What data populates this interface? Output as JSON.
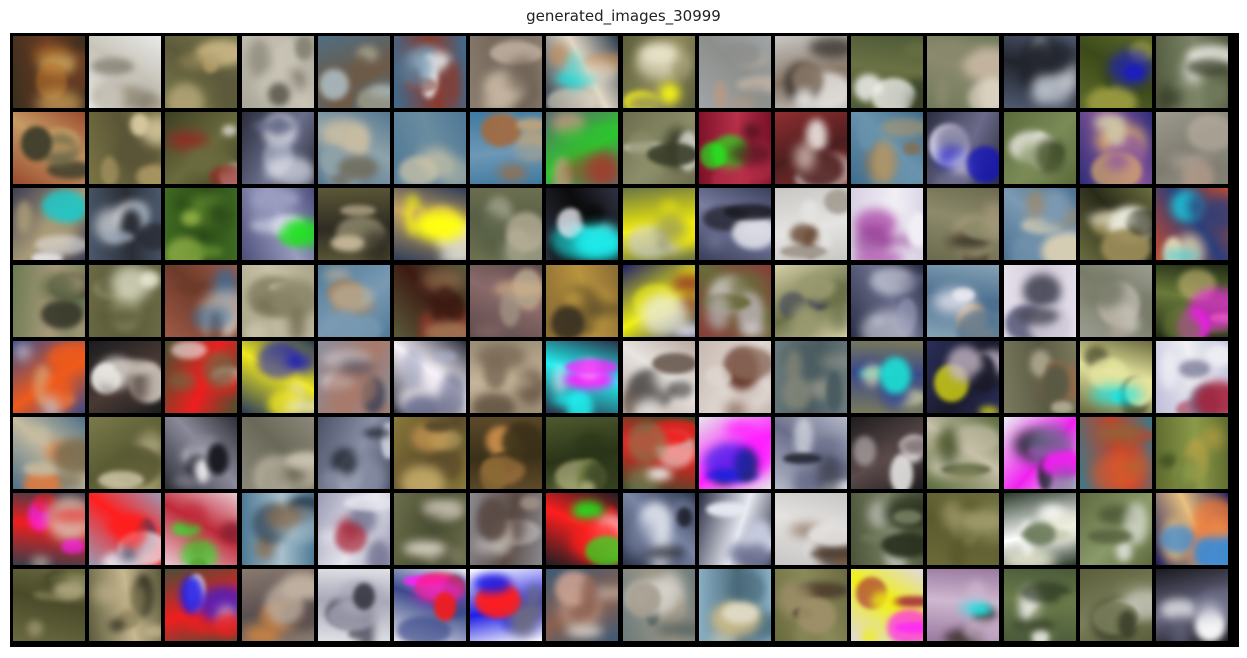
{
  "figure": {
    "title": "generated_images_30999"
  },
  "grid_info": {
    "rows": 8,
    "cols": 16
  },
  "palettes": [
    [
      "#3a2f1e",
      "#b8742c",
      "#6b3b22",
      "#c9a25a"
    ],
    [
      "#e8ebe9",
      "#9b8e76",
      "#c7c3b8",
      "#6f6a5a"
    ],
    [
      "#7b7a4a",
      "#a8945f",
      "#5c5a3b",
      "#c8b585"
    ],
    [
      "#a9a698",
      "#7f7b6c",
      "#c9c4b6",
      "#5f5b4f"
    ],
    [
      "#4e6e83",
      "#9e9a86",
      "#6e5a46",
      "#a7b4b8"
    ],
    [
      "#3d6c8f",
      "#e6e8e9",
      "#8b3a2c",
      "#5e86a3"
    ],
    [
      "#8a7d6e",
      "#b9a99a",
      "#6e6255",
      "#c9b8a4"
    ],
    [
      "#2b3a4a",
      "#c48a54",
      "#e3d9c6",
      "#1fd6d6"
    ],
    [
      "#5b5e3a",
      "#e8e2c8",
      "#8f8a5c",
      "#f2f01a"
    ],
    [
      "#a0a5a8",
      "#c3b4a6",
      "#8d8f8c",
      "#b89a84"
    ],
    [
      "#c8c6c2",
      "#1a1614",
      "#8a7a6a",
      "#e8e6e4"
    ],
    [
      "#4d5a36",
      "#f1f1ef",
      "#6a7144",
      "#3a4428"
    ],
    [
      "#6f7a5a",
      "#c8b7a3",
      "#8c8a6e",
      "#e0d7c8"
    ],
    [
      "#4f5a70",
      "#e9ecef",
      "#22252d",
      "#c2c8d2"
    ],
    [
      "#5e6b2b",
      "#9b9c40",
      "#3c4a1a",
      "#1c1cc6"
    ],
    [
      "#525a3f",
      "#f0efe9",
      "#7d8568",
      "#343b26"
    ],
    [
      "#9a4a2e",
      "#6b6a4a",
      "#c79b64",
      "#3d3d2a"
    ],
    [
      "#7a7444",
      "#b8a26a",
      "#5a5536",
      "#d8c9a0"
    ],
    [
      "#3e3f22",
      "#ffffff",
      "#6a6b3e",
      "#a02020"
    ],
    [
      "#2a2c3a",
      "#e6e6ef",
      "#6a6f8c",
      "#b0b8c8"
    ],
    [
      "#577892",
      "#c7bca3",
      "#8ea2a9",
      "#6e6450"
    ],
    [
      "#4e7896",
      "#a9b2a2",
      "#6a8c9f",
      "#c9c2a8"
    ],
    [
      "#3f7aa0",
      "#a46a3c",
      "#6d98b6",
      "#c9a777"
    ],
    [
      "#5a6a6e",
      "#d09a86",
      "#2ec52e",
      "#a43a2c"
    ],
    [
      "#6b6c4c",
      "#f1f0ec",
      "#8c8e6a",
      "#3a3d28"
    ],
    [
      "#7a1028",
      "#1df21d",
      "#b8304a",
      "#3a0c16"
    ],
    [
      "#8f2e30",
      "#e8e1dd",
      "#4d1e1e",
      "#c4a8a2"
    ],
    [
      "#3e6c8c",
      "#b59a6a",
      "#6a94ae",
      "#8a6a44"
    ],
    [
      "#2a2e40",
      "#d9d6ea",
      "#6c6a8a",
      "#1010c0"
    ],
    [
      "#5a6a3a",
      "#dcdcd0",
      "#7b8b58",
      "#3a4624"
    ],
    [
      "#2e2d7a",
      "#e3b766",
      "#8f5a9a",
      "#d0c8a8"
    ],
    [
      "#9d9a8e",
      "#c3b8a8",
      "#7d7a70",
      "#b49c8c"
    ],
    [
      "#3f3e52",
      "#f0eef1",
      "#a89a76",
      "#1ec8c8"
    ],
    [
      "#4b5a6e",
      "#e9ecef",
      "#2a2e36",
      "#9aa8b8"
    ],
    [
      "#3e6b22",
      "#6c9a34",
      "#2c4a18",
      "#9ab84a"
    ],
    [
      "#4c4e7a",
      "#d6d8ea",
      "#9a9cc0",
      "#22e222"
    ],
    [
      "#5c5838",
      "#a0987a",
      "#2e2c22",
      "#c8b89a"
    ],
    [
      "#2f3c56",
      "#f7f7f0",
      "#c4a266",
      "#ffff10"
    ],
    [
      "#6d7050",
      "#9a9b84",
      "#586046",
      "#b8b098"
    ],
    [
      "#2f3242",
      "#e9e9f1",
      "#0b0b0b",
      "#1ee8e8"
    ],
    [
      "#6a7444",
      "#cfcfd8",
      "#f6f108",
      "#8a8c66"
    ],
    [
      "#3a3f5c",
      "#dcdde6",
      "#7a7ea0",
      "#1a1a22"
    ],
    [
      "#c9c7c4",
      "#6a4b36",
      "#e5e4e2",
      "#a29a90"
    ],
    [
      "#d6cfe2",
      "#8c2f8c",
      "#f1eef4",
      "#b86ab8"
    ],
    [
      "#6c6a4e",
      "#3e3a2a",
      "#8c8a6a",
      "#a69a7a"
    ],
    [
      "#4a6f90",
      "#d9cfb4",
      "#7c9ab3",
      "#a98a5e"
    ],
    [
      "#6a6e3e",
      "#9a8c58",
      "#2a2a1a",
      "#e8e8d8"
    ],
    [
      "#c84a2a",
      "#e5d9b6",
      "#2a3e7a",
      "#1ecede"
    ],
    [
      "#6b7a52",
      "#3a3a2c",
      "#a89a7a",
      "#52603e"
    ],
    [
      "#6b6a44",
      "#9a9a70",
      "#5a5a3a",
      "#f5f5e0"
    ],
    [
      "#a05a46",
      "#e8d6c4",
      "#6d3a2a",
      "#3a6d9a"
    ],
    [
      "#a8a68a",
      "#8a8568",
      "#c8c2a8",
      "#6a664c"
    ],
    [
      "#4f7a98",
      "#9a846a",
      "#7a9ab3",
      "#c4b49a"
    ],
    [
      "#5a5a3a",
      "#8c3a2a",
      "#3c1a12",
      "#a67a58"
    ],
    [
      "#5a4848",
      "#d6b48a",
      "#8a6a6a",
      "#a89c8a"
    ],
    [
      "#8a6a34",
      "#5a4a2a",
      "#b8943e",
      "#3a3222"
    ],
    [
      "#1f1f6a",
      "#e8e8ee",
      "#f0f010",
      "#8a2a2a"
    ],
    [
      "#8a3a3a",
      "#e6e4ea",
      "#6a6a3a",
      "#b8b0b0"
    ],
    [
      "#d6d0a6",
      "#3a3e5a",
      "#6a7048",
      "#9a9a70"
    ],
    [
      "#2a2e44",
      "#d9dbe6",
      "#6a6e8c",
      "#9a9cb8"
    ],
    [
      "#86a4b6",
      "#c8aa86",
      "#4e7090",
      "#e8e8f0"
    ],
    [
      "#e6e0ec",
      "#6a6a88",
      "#cfc8d6",
      "#4a4a5a"
    ],
    [
      "#9a9c8e",
      "#c4c0b6",
      "#7a7c6a",
      "#b4ac9a"
    ],
    [
      "#1f2a14",
      "#c8b876",
      "#6a7a3a",
      "#ff10ff"
    ],
    [
      "#3a4a8a",
      "#d9a87a",
      "#f05a1a",
      "#c6c4d0"
    ],
    [
      "#1a1c1e",
      "#e9e6e2",
      "#4a3a34",
      "#c6bdb4"
    ],
    [
      "#4a5030",
      "#ffffff",
      "#f01e1e",
      "#6a6a44"
    ],
    [
      "#2a3a5a",
      "#e8e2bc",
      "#f0e81e",
      "#1010c8"
    ],
    [
      "#8a8e9e",
      "#d4cfd6",
      "#a87a6a",
      "#4a4a5a"
    ],
    [
      "#2a2c3a",
      "#a9aec6",
      "#f7f1f9",
      "#6a6e8e"
    ],
    [
      "#9a8c76",
      "#5a4a3a",
      "#c6b49a",
      "#7a6a56"
    ],
    [
      "#2a3248",
      "#e8e6f2",
      "#20f0f0",
      "#ff20ff"
    ],
    [
      "#b8a8a0",
      "#2a2a2a",
      "#e8e4e0",
      "#6a5a50"
    ],
    [
      "#c6b8b0",
      "#6a3a2e",
      "#e0d8d2",
      "#8a6a5a"
    ],
    [
      "#6a7c7e",
      "#a4a090",
      "#4a5c60",
      "#8a8a7a"
    ],
    [
      "#7a7a5a",
      "#e8e6b4",
      "#3a4a8a",
      "#1eded2"
    ],
    [
      "#2a2e5a",
      "#c4b6c4",
      "#1a1a2a",
      "#f0f010"
    ],
    [
      "#7a7a5e",
      "#9a6a4a",
      "#5a5a44",
      "#b8b098"
    ],
    [
      "#6a6a3e",
      "#2a2a1a",
      "#e6e6a0",
      "#1ee6e6"
    ],
    [
      "#bcbcd8",
      "#a2203a",
      "#efeff4",
      "#6a6a8a"
    ],
    [
      "#4e7088",
      "#e87a3a",
      "#c6bca0",
      "#7a6a4a"
    ],
    [
      "#7a7a4a",
      "#a09a6a",
      "#5a5a34",
      "#c8c0a0"
    ],
    [
      "#2e2e36",
      "#e8e6ea",
      "#8a8a9a",
      "#1a1a22"
    ],
    [
      "#8a8878",
      "#b4ac98",
      "#6a6858",
      "#cac2b0"
    ],
    [
      "#4a5266",
      "#c8ccd8",
      "#8a90a6",
      "#1a1e2a"
    ],
    [
      "#8a7a3a",
      "#b48a4a",
      "#5a4a2a",
      "#c8ae6a"
    ],
    [
      "#5e4a2a",
      "#c48a4a",
      "#3a3018",
      "#8a6a34"
    ],
    [
      "#4e5a2e",
      "#7a8a4a",
      "#2a3418",
      "#a8a87a"
    ],
    [
      "#3a4a2a",
      "#f2f2ee",
      "#f01e1e",
      "#7a8a5a"
    ],
    [
      "#e6e4ea",
      "#2a2a2a",
      "#ff20ff",
      "#1e1ee6"
    ],
    [
      "#b4b8c8",
      "#e6e8ee",
      "#6a6e8a",
      "#2a2e3a"
    ],
    [
      "#1e1c1e",
      "#f2f0f0",
      "#5a4a4a",
      "#c0b8b8"
    ],
    [
      "#5a6a3a",
      "#8a8a5a",
      "#c6c0a8",
      "#3a4a28"
    ],
    [
      "#ececf2",
      "#2a2a36",
      "#f020f0",
      "#6a6a8a"
    ],
    [
      "#3a7a8a",
      "#e05a2a",
      "#c4402a",
      "#8a6a3a"
    ],
    [
      "#5e6a2e",
      "#3a4a1e",
      "#8a9a4a",
      "#c4a444"
    ],
    [
      "#3a3e4a",
      "#ff20ff",
      "#f01e1e",
      "#d6d2c0"
    ],
    [
      "#9a9ab4",
      "#e8e8ee",
      "#ff1e1e",
      "#3a3a5a"
    ],
    [
      "#e8c8d0",
      "#8a2030",
      "#c02a3a",
      "#2ee62e"
    ],
    [
      "#4e7a96",
      "#2a3a4a",
      "#a9c0cc",
      "#8a6a4a"
    ],
    [
      "#9a9ab4",
      "#a8283a",
      "#e6e6ee",
      "#6a6a8a"
    ],
    [
      "#6a6e4a",
      "#b8b0a0",
      "#4a4e32",
      "#d6d0c0"
    ],
    [
      "#8a8a90",
      "#c6c2c0",
      "#5a4a44",
      "#a89a8e"
    ],
    [
      "#1e1e22",
      "#ffffff",
      "#ff1e1e",
      "#1ee61e"
    ],
    [
      "#2a3248",
      "#dce0ea",
      "#7a86a6",
      "#1a1a24"
    ],
    [
      "#2a2e44",
      "#c8cce0",
      "#e8eaf2",
      "#6a6e8e"
    ],
    [
      "#c8c6c4",
      "#7a5a44",
      "#e4e2e0",
      "#4a3a2e"
    ],
    [
      "#4a5238",
      "#c6c8c0",
      "#7a8264",
      "#2a3220"
    ],
    [
      "#6a6a3a",
      "#8a8a5a",
      "#5a5a2e",
      "#a8a070"
    ],
    [
      "#2a3a2a",
      "#e8e8d0",
      "#ffffff",
      "#6a7a5a"
    ],
    [
      "#5e6a3e",
      "#f2f2f0",
      "#8a9a6a",
      "#3a4428"
    ],
    [
      "#1a1c5a",
      "#f07a3a",
      "#e8c080",
      "#3a8ad6"
    ],
    [
      "#6a6a40",
      "#8a8a5a",
      "#4a4a2a",
      "#a8a078"
    ],
    [
      "#5a5a3a",
      "#2a2a1e",
      "#c8b890",
      "#8a8058"
    ],
    [
      "#4a4e3a",
      "#ffffff",
      "#f01e1e",
      "#1e1ef0"
    ],
    [
      "#8a7a70",
      "#e0883a",
      "#5a5050",
      "#c0b0a0"
    ],
    [
      "#e0e0e6",
      "#5a5a6a",
      "#a8a8b8",
      "#2a2a34"
    ],
    [
      "#e8e6ee",
      "#ff20ff",
      "#3a4a8a",
      "#f01e1e"
    ],
    [
      "#ffffff",
      "#ff1e1e",
      "#1e1ee6",
      "#6a6a80"
    ],
    [
      "#3a5a76",
      "#c8a090",
      "#8a6050",
      "#d6d2c8"
    ],
    [
      "#6a7a7a",
      "#d8d4cc",
      "#a09888",
      "#4a5a5a"
    ],
    [
      "#8ab0c4",
      "#c8b888",
      "#4a6a7a",
      "#e0dcc8"
    ],
    [
      "#6a6a40",
      "#4a3a2a",
      "#8a8a5a",
      "#a0906a"
    ],
    [
      "#e0d8e0",
      "#a0203a",
      "#f0f01a",
      "#ff20ff"
    ],
    [
      "#9a7aa0",
      "#3a2e2a",
      "#d0b8d0",
      "#1ee6e6"
    ],
    [
      "#4a5a3a",
      "#f2f2ee",
      "#6a7a4a",
      "#2a3420"
    ],
    [
      "#5a5e3a",
      "#e0e0da",
      "#7a7e5a",
      "#3a3e28"
    ],
    [
      "#1a1a20",
      "#ffffff",
      "#6a6a84",
      "#b8b8c8"
    ]
  ]
}
